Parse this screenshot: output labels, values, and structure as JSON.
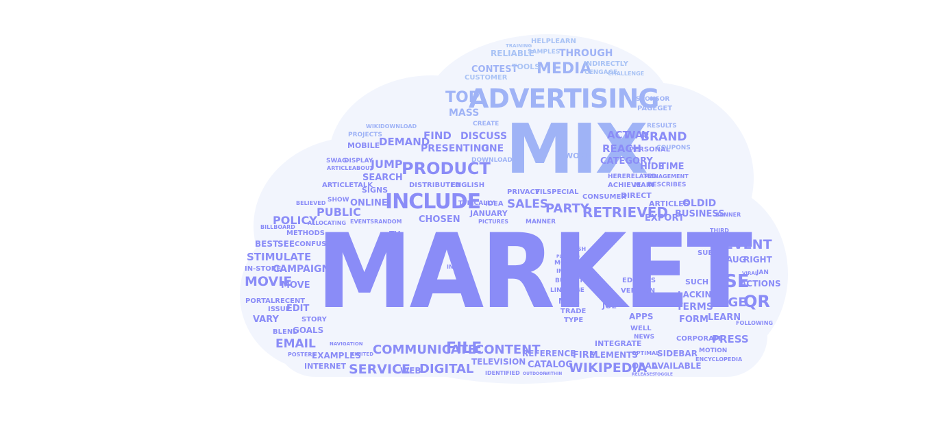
{
  "cloud": {
    "fill": "#f1f4fd",
    "palette": [
      "#8a8cf7",
      "#9fb3f6",
      "#a9c3f5",
      "#b7cdf2",
      "#6f7ff0"
    ]
  },
  "words": {
    "market": "MARKET",
    "mix": "MIX",
    "advertising": "ADVERTISING",
    "include": "INCLUDE",
    "product": "PRODUCT",
    "media": "MEDIA",
    "communicate": "COMMUNICATE",
    "service": "SERVICE",
    "digital": "DIGITAL",
    "wikipedia": "WIKIPEDIA",
    "retrieved": "RETRIEVED",
    "file": "FILE",
    "content": "CONTENT",
    "use": "USE",
    "page": "PAGE",
    "qr": "QR",
    "event": "EVENT",
    "campaign": "CAMPAIGN",
    "movie": "MOVIE",
    "email": "EMAIL",
    "policy": "POLICY",
    "public": "PUBLIC",
    "stimulate": "STIMULATE",
    "sales": "SALES",
    "party": "PARTY",
    "brand": "BRAND",
    "top": "TOP",
    "mass": "MASS",
    "discuss": "DISCUSS",
    "find": "FIND",
    "demand": "DEMAND",
    "presenting": "PRESENTING",
    "one": "ONE",
    "jump": "JUMP",
    "search": "SEARCH",
    "online": "ONLINE",
    "chosen": "CHOSEN",
    "through": "THROUGH",
    "contest": "CONTEST",
    "customer": "CUSTOMER",
    "tools": "TOOLS",
    "reliable": "RELIABLE",
    "helplearn": "HELPLEARN",
    "indirectly": "INDIRECTLY",
    "act": "ACT",
    "way": "WAY",
    "reach": "REACH",
    "category": "CATEGORY",
    "hide": "HIDE",
    "time": "TIME",
    "oldid": "OLDID",
    "business": "BUSINESS",
    "articles": "ARTICLES",
    "export": "EXPORT",
    "press": "PRESS",
    "terms": "TERMS",
    "learn": "LEARN",
    "form": "FORM",
    "lacking": "LACKING",
    "sidebar": "SIDEBAR",
    "oral": "ORAL",
    "available": "AVAILABLE",
    "firm": "FIRM",
    "elements": "ELEMENTS",
    "integrate": "INTEGRATE",
    "reference": "REFERENCE",
    "catalog": "CATALOG",
    "television": "TELEVISION",
    "web": "WEB",
    "examples": "EXAMPLES",
    "internet": "INTERNET",
    "goals": "GOALS",
    "vary": "VARY",
    "edit": "EDIT",
    "issue": "ISSUE",
    "blend": "BLEND",
    "story": "STORY",
    "portalrecent": "PORTALRECENT",
    "move": "MOVE",
    "in_store": "IN-STORE",
    "best": "BEST",
    "see": "SEE",
    "confused": "CONFUSED",
    "methods": "METHODS",
    "billboard": "BILLBOARD",
    "believed": "BELIEVED",
    "show": "SHOW",
    "articletalk": "ARTICLETALK",
    "signs": "SIGNS",
    "distributed": "DISTRIBUTED",
    "english": "ENGLISH",
    "january": "JANUARY",
    "idea": "IDEA",
    "typically": "TYPICALLY",
    "privacy": "PRIVACY",
    "filspecial": "FILSPECIAL",
    "consumer": "CONSUMER",
    "direct": "DIRECT",
    "achieve": "ACHIEVE",
    "main": "MAIN",
    "describes": "DESCRIBES",
    "management": "MANAGEMENT",
    "hererelated": "HERERELATED",
    "word": "WORD",
    "personal": "PERSONAL",
    "coupons": "COUPONS",
    "results": "RESULTS",
    "pageget": "PAGEGET",
    "sponsor": "SPONSOR",
    "cengage": "CENGAGE",
    "challenge": "CHALLENGE",
    "samples": "SAMPLES",
    "training": "TRAINING",
    "create": "CREATE",
    "download": "DOWNLOAD",
    "mobile": "MOBILE",
    "projects": "PROJECTS",
    "wikidownload": "WIKIDOWNLOAD",
    "swag": "SWAG",
    "display": "DISPLAY",
    "articleabout": "ARTICLEABOUT",
    "manner": "MANNER",
    "pictures": "PICTURES",
    "eventsrandom": "EVENTSRANDOM",
    "allocating": "ALLOCATING",
    "mouth": "MOUTH",
    "increase": "INCREASE",
    "budgets": "BUDGETS",
    "linkpage": "LINKPAGE",
    "mail": "MAIL",
    "trade": "TRADE",
    "type": "TYPE",
    "joe": "JOE",
    "version": "VERSION",
    "editors": "EDITORS",
    "apps": "APPS",
    "well": "WELL",
    "news": "NEWS",
    "corporate": "CORPORATE",
    "encyclopedia": "ENCYCLOPEDIA",
    "motion": "MOTION",
    "actions": "ACTIONS",
    "subset": "SUBSET",
    "aug": "AUG",
    "right": "RIGHT",
    "such": "SUCH",
    "following": "FOLLOWING",
    "viral": "VIRAL",
    "jan": "JAN",
    "banner": "BANNER",
    "third": "THIRD",
    "posters": "POSTERS",
    "limited": "LIMITED",
    "navigation": "NAVIGATION",
    "identified": "IDENTIFIED",
    "outdoor": "OUTDOOR",
    "within": "WITHIN",
    "tv": "TV",
    "isbn": "ISBN",
    "flash": "FLASH",
    "planting": "PLANTING",
    "releases": "RELEASES",
    "toggle": "TOGGLE",
    "optimal": "OPTIMAL",
    "zero": "INC"
  }
}
